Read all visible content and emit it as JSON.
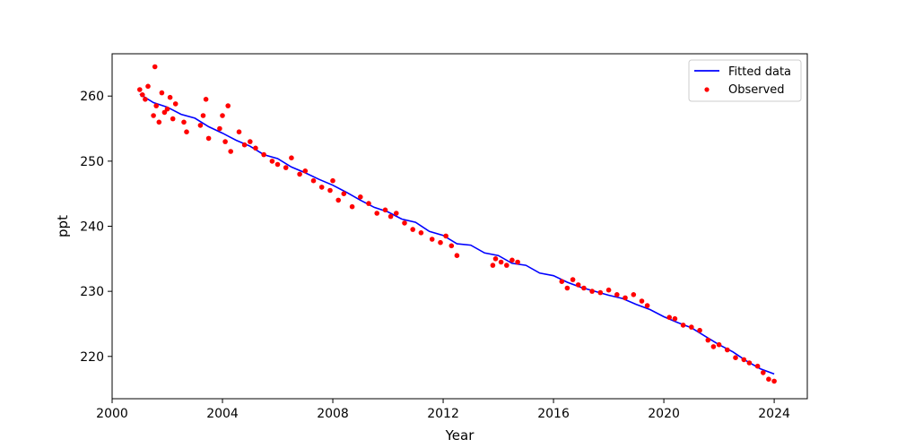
{
  "chart_data": {
    "type": "scatter",
    "title": "",
    "xlabel": "Year",
    "ylabel": "ppt",
    "xlim": [
      2000.0,
      2025.2
    ],
    "ylim": [
      213.5,
      266.5
    ],
    "xticks": [
      2000,
      2004,
      2008,
      2012,
      2016,
      2020,
      2024
    ],
    "yticks": [
      220,
      230,
      240,
      250,
      260
    ],
    "grid": false,
    "legend_position": "top-right",
    "colors": {
      "fitted": "#0000ff",
      "observed": "#ff0000"
    },
    "series": [
      {
        "name": "Fitted data",
        "kind": "line",
        "x": [
          2001.0,
          2001.5,
          2002.0,
          2002.5,
          2003.0,
          2003.5,
          2004.0,
          2004.5,
          2005.0,
          2005.5,
          2006.0,
          2006.5,
          2007.0,
          2007.5,
          2008.0,
          2008.5,
          2009.0,
          2009.5,
          2010.0,
          2010.5,
          2011.0,
          2011.5,
          2012.0,
          2012.5,
          2013.0,
          2013.5,
          2014.0,
          2014.5,
          2015.0,
          2015.5,
          2016.0,
          2016.5,
          2017.0,
          2017.5,
          2018.0,
          2018.5,
          2019.0,
          2019.5,
          2020.0,
          2020.5,
          2021.0,
          2021.5,
          2022.0,
          2022.5,
          2023.0,
          2023.5,
          2024.0
        ],
        "y": [
          260.3,
          259.0,
          258.3,
          257.2,
          256.6,
          255.3,
          254.3,
          253.2,
          252.3,
          251.0,
          250.4,
          249.1,
          248.2,
          247.2,
          246.3,
          245.2,
          244.0,
          242.9,
          242.2,
          241.1,
          240.6,
          239.2,
          238.6,
          237.3,
          237.1,
          235.9,
          235.5,
          234.3,
          234.0,
          232.8,
          232.4,
          231.4,
          230.6,
          230.0,
          229.4,
          228.9,
          228.0,
          227.2,
          226.1,
          225.2,
          224.4,
          223.1,
          221.8,
          220.7,
          219.3,
          218.1,
          217.3
        ]
      },
      {
        "name": "Observed",
        "kind": "scatter",
        "x": [
          2001.0,
          2001.1,
          2001.2,
          2001.3,
          2001.5,
          2001.55,
          2001.6,
          2001.7,
          2001.8,
          2001.9,
          2002.0,
          2002.1,
          2002.2,
          2002.3,
          2002.6,
          2002.7,
          2003.2,
          2003.3,
          2003.4,
          2003.5,
          2003.9,
          2004.0,
          2004.1,
          2004.2,
          2004.3,
          2004.6,
          2004.8,
          2005.0,
          2005.2,
          2005.5,
          2005.8,
          2006.0,
          2006.3,
          2006.5,
          2006.8,
          2007.0,
          2007.3,
          2007.6,
          2007.9,
          2008.0,
          2008.2,
          2008.4,
          2008.7,
          2009.0,
          2009.3,
          2009.6,
          2009.9,
          2010.1,
          2010.3,
          2010.6,
          2010.9,
          2011.2,
          2011.6,
          2011.9,
          2012.1,
          2012.3,
          2012.5,
          2013.8,
          2013.9,
          2014.1,
          2014.3,
          2014.5,
          2014.7,
          2016.3,
          2016.5,
          2016.7,
          2016.9,
          2017.1,
          2017.4,
          2017.7,
          2018.0,
          2018.3,
          2018.6,
          2018.9,
          2019.2,
          2019.4,
          2020.2,
          2020.4,
          2020.7,
          2021.0,
          2021.3,
          2021.6,
          2021.8,
          2022.0,
          2022.3,
          2022.6,
          2022.9,
          2023.1,
          2023.4,
          2023.6,
          2023.8,
          2024.0
        ],
        "y": [
          261.0,
          260.2,
          259.5,
          261.5,
          257.0,
          264.5,
          258.5,
          256.0,
          260.5,
          257.5,
          258.0,
          259.8,
          256.5,
          258.8,
          256.0,
          254.5,
          255.5,
          257.0,
          259.5,
          253.5,
          255.0,
          257.0,
          253.0,
          258.5,
          251.5,
          254.5,
          252.5,
          253.0,
          252.0,
          251.0,
          250.0,
          249.5,
          249.0,
          250.5,
          248.0,
          248.5,
          247.0,
          246.0,
          245.5,
          247.0,
          244.0,
          245.0,
          243.0,
          244.5,
          243.5,
          242.0,
          242.5,
          241.5,
          242.0,
          240.5,
          239.5,
          239.0,
          238.0,
          237.5,
          238.5,
          237.0,
          235.5,
          234.0,
          235.0,
          234.5,
          234.0,
          234.8,
          234.5,
          231.5,
          230.5,
          231.8,
          231.0,
          230.5,
          230.0,
          229.8,
          230.2,
          229.5,
          229.0,
          229.5,
          228.5,
          227.8,
          226.0,
          225.8,
          224.8,
          224.5,
          224.0,
          222.5,
          221.5,
          221.8,
          221.0,
          219.8,
          219.5,
          219.0,
          218.5,
          217.5,
          216.5,
          216.2
        ]
      }
    ]
  }
}
